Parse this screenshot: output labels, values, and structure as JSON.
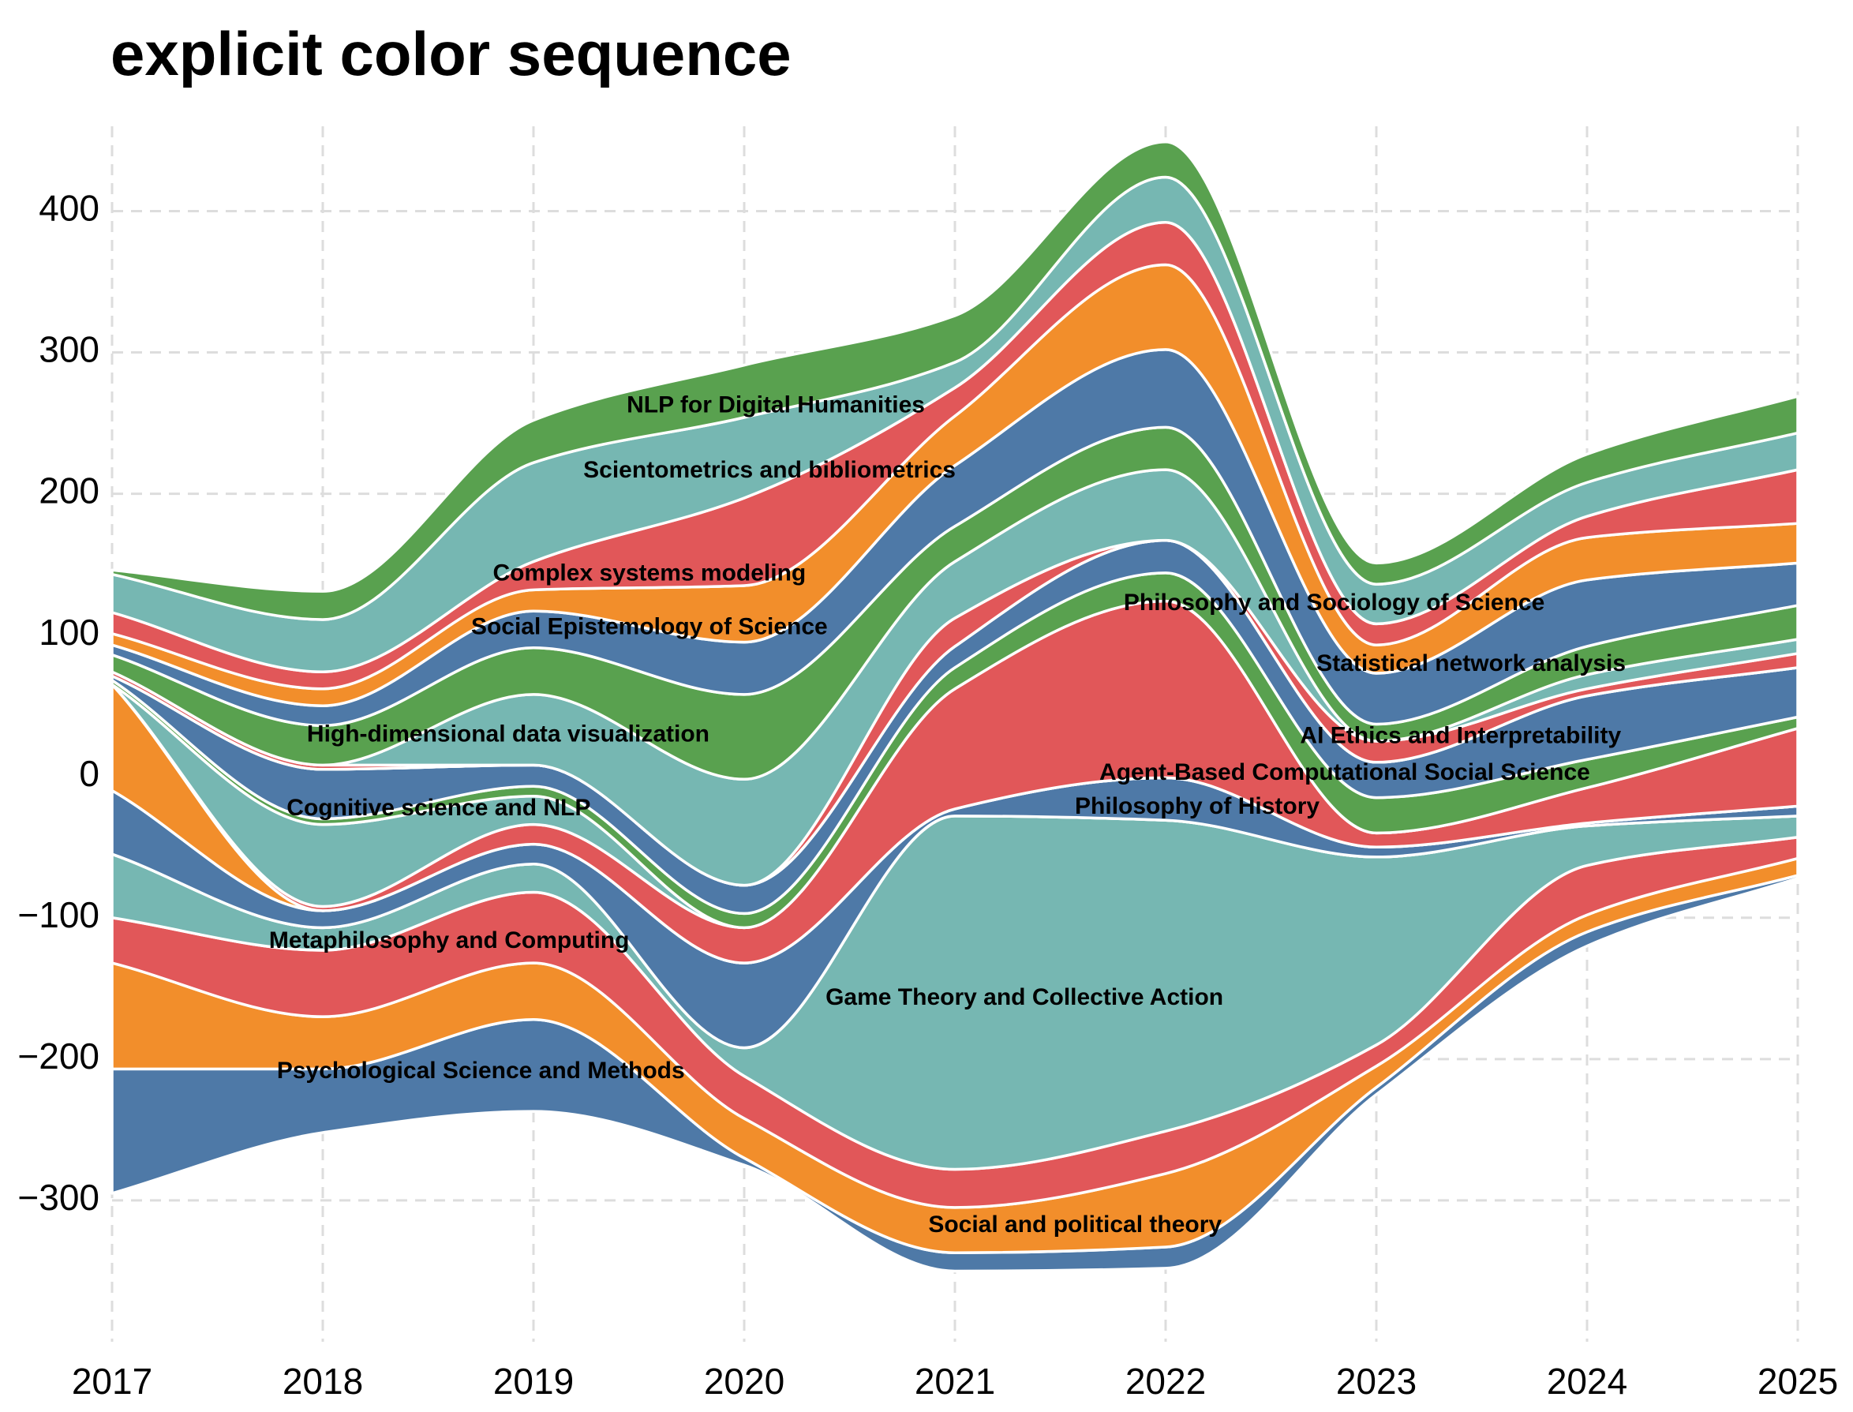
{
  "chart_data": {
    "type": "area",
    "title": "explicit color sequence",
    "x": [
      2017,
      2018,
      2019,
      2020,
      2021,
      2022,
      2023,
      2024,
      2025
    ],
    "xlim": [
      2017,
      2025
    ],
    "ylim": [
      -400,
      460
    ],
    "y_ticks": [
      -300,
      -200,
      -100,
      0,
      100,
      200,
      300,
      400
    ],
    "grid": true,
    "baseline": [
      -295,
      -252,
      -237,
      -275,
      -350,
      -348,
      -225,
      -120,
      -72
    ],
    "colors": [
      "#4e79a7",
      "#f28e2b",
      "#e15759",
      "#76b7b2",
      "#59a14f"
    ],
    "series": [
      {
        "name": "Psychological Science and Methods",
        "values": [
          88,
          45,
          65,
          5,
          13,
          15,
          5,
          10,
          2
        ]
      },
      {
        "name": "Social and political theory",
        "values": [
          75,
          37,
          40,
          28,
          32,
          52,
          15,
          12,
          12
        ]
      },
      {
        "name": "Metaphilosophy and Computing",
        "values": [
          32,
          47,
          50,
          30,
          27,
          30,
          15,
          35,
          15
        ]
      },
      {
        "name": "Game Theory and Collective Action",
        "values": [
          45,
          16,
          20,
          20,
          250,
          220,
          133,
          28,
          15
        ]
      },
      {
        "name": "Cognitive science and NLP",
        "values": [
          0,
          0,
          0,
          0,
          0,
          0,
          0,
          0,
          0
        ]
      },
      {
        "name": "Philosophy of History",
        "values": [
          45,
          12,
          14,
          60,
          5,
          30,
          7,
          2,
          7
        ]
      },
      {
        "name": "Cognitive science and NLP",
        "values": [
          75,
          0,
          0,
          0,
          0,
          0,
          0,
          0,
          0
        ]
      },
      {
        "name": "Agent-Based Computational Social Science",
        "values": [
          0,
          3,
          14,
          25,
          85,
          125,
          10,
          25,
          55
        ]
      },
      {
        "name": "Cognitive science and NLP",
        "values": [
          0,
          58,
          20,
          0,
          0,
          0,
          0,
          0,
          0
        ]
      },
      {
        "name": "AI Ethics and Interpretability",
        "values": [
          3,
          4,
          7,
          10,
          15,
          20,
          25,
          20,
          8
        ]
      },
      {
        "name": "High-dimensional data visualization",
        "values": [
          3,
          35,
          15,
          20,
          15,
          23,
          25,
          45,
          35
        ]
      },
      {
        "name": "Statistical network analysis",
        "values": [
          0,
          0,
          0,
          0,
          0,
          0,
          0,
          0,
          0
        ]
      },
      {
        "name": "Statistical network analysis",
        "values": [
          3,
          3,
          0,
          0,
          20,
          0,
          15,
          5,
          10
        ]
      },
      {
        "name": "High-dimensional data visualization",
        "values": [
          0,
          0,
          50,
          75,
          40,
          50,
          0,
          10,
          10
        ]
      },
      {
        "name": "Statistical network analysis",
        "values": [
          12,
          28,
          33,
          60,
          25,
          30,
          12,
          20,
          24
        ]
      },
      {
        "name": "Philosophy and Sociology of Science",
        "values": [
          7,
          14,
          26,
          37,
          43,
          55,
          36,
          47,
          30
        ]
      },
      {
        "name": "Social Epistemology of Science",
        "values": [
          8,
          12,
          15,
          40,
          35,
          60,
          20,
          30,
          28
        ]
      },
      {
        "name": "Complex systems modeling",
        "values": [
          15,
          12,
          20,
          62,
          20,
          30,
          15,
          15,
          38
        ]
      },
      {
        "name": "Scientometrics and bibliometrics",
        "values": [
          27,
          37,
          70,
          57,
          18,
          32,
          28,
          24,
          26
        ]
      },
      {
        "name": "NLP for Digital Humanities",
        "values": [
          3,
          20,
          30,
          37,
          33,
          25,
          15,
          20,
          26
        ]
      }
    ],
    "labels": [
      {
        "text": "NLP for Digital Humanities",
        "x": 2020.15,
        "y": 262
      },
      {
        "text": "Scientometrics and bibliometrics",
        "x": 2020.12,
        "y": 216
      },
      {
        "text": "Complex systems modeling",
        "x": 2019.55,
        "y": 143
      },
      {
        "text": "Social Epistemology of Science",
        "x": 2019.55,
        "y": 105
      },
      {
        "text": "High-dimensional data visualization",
        "x": 2018.88,
        "y": 29
      },
      {
        "text": "Cognitive science and NLP",
        "x": 2018.55,
        "y": -23
      },
      {
        "text": "Metaphilosophy and Computing",
        "x": 2018.6,
        "y": -117
      },
      {
        "text": "Psychological Science and Methods",
        "x": 2018.75,
        "y": -209
      },
      {
        "text": "Game Theory and Collective Action",
        "x": 2021.33,
        "y": -157
      },
      {
        "text": "Social and political theory",
        "x": 2021.57,
        "y": -318
      },
      {
        "text": "Philosophy and Sociology of Science",
        "x": 2022.8,
        "y": 122
      },
      {
        "text": "Statistical network analysis",
        "x": 2023.45,
        "y": 79
      },
      {
        "text": "AI Ethics and Interpretability",
        "x": 2023.4,
        "y": 28
      },
      {
        "text": "Agent-Based Computational Social Science",
        "x": 2022.85,
        "y": 2
      },
      {
        "text": "Philosophy of History",
        "x": 2022.15,
        "y": -22
      }
    ]
  }
}
